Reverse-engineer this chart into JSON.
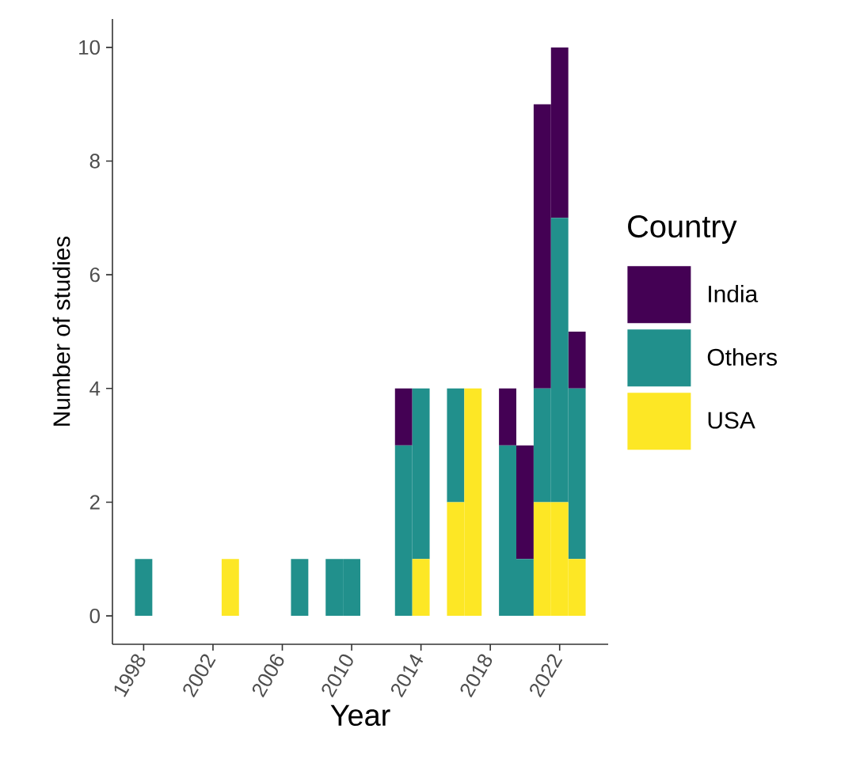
{
  "chart_data": {
    "type": "bar",
    "stacked": true,
    "xlabel": "Year",
    "ylabel": "Number of studies",
    "legend_title": "Country",
    "legend": "right",
    "grid": false,
    "x": [
      1998,
      1999,
      2000,
      2001,
      2002,
      2003,
      2004,
      2005,
      2006,
      2007,
      2008,
      2009,
      2010,
      2011,
      2012,
      2013,
      2014,
      2015,
      2016,
      2017,
      2018,
      2019,
      2020,
      2021,
      2022,
      2023
    ],
    "xlim": [
      1996.2,
      2024.8
    ],
    "xticks": [
      1998,
      2002,
      2006,
      2010,
      2014,
      2018,
      2022
    ],
    "ylim": [
      -0.5,
      10.5
    ],
    "yticks": [
      0,
      2,
      4,
      6,
      8,
      10
    ],
    "series": [
      {
        "name": "USA",
        "color": "#fde725",
        "values": [
          0,
          0,
          0,
          0,
          0,
          1,
          0,
          0,
          0,
          0,
          0,
          0,
          0,
          0,
          0,
          0,
          1,
          0,
          2,
          4,
          0,
          0,
          0,
          2,
          2,
          1
        ]
      },
      {
        "name": "Others",
        "color": "#21908c",
        "values": [
          1,
          0,
          0,
          0,
          0,
          0,
          0,
          0,
          0,
          1,
          0,
          1,
          1,
          0,
          0,
          3,
          3,
          0,
          2,
          0,
          0,
          3,
          1,
          2,
          5,
          3
        ]
      },
      {
        "name": "India",
        "color": "#440154",
        "values": [
          0,
          0,
          0,
          0,
          0,
          0,
          0,
          0,
          0,
          0,
          0,
          0,
          0,
          0,
          0,
          1,
          0,
          0,
          0,
          0,
          0,
          1,
          2,
          5,
          3,
          1
        ]
      }
    ]
  }
}
